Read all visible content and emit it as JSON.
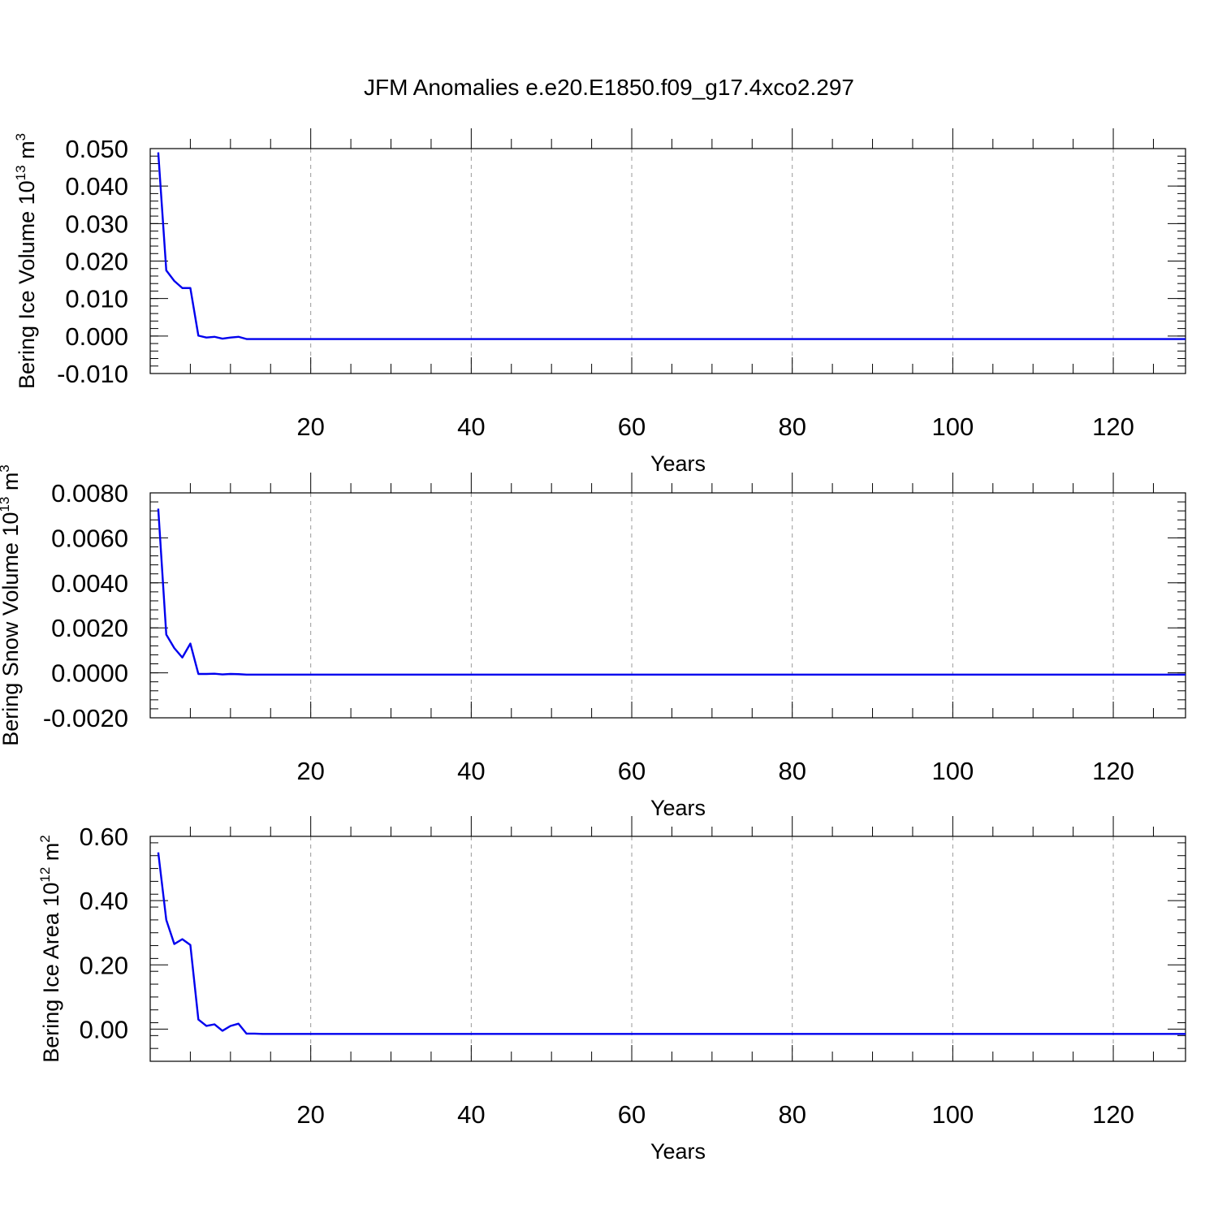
{
  "figure_title": "JFM Anomalies e.e20.E1850.f09_g17.4xco2.297",
  "line_color": "#0000ee",
  "chart_data": [
    {
      "type": "line",
      "xlabel": "Years",
      "ylabel": "Bering Ice Volume 10",
      "ylabel_exp": "13",
      "ylabel_unit": " m",
      "ylabel_unit_exp": "3",
      "xlim": [
        0,
        129
      ],
      "ylim": [
        -0.01,
        0.05
      ],
      "xticks": [
        20,
        40,
        60,
        80,
        100,
        120
      ],
      "xtick_labels": [
        "20",
        "40",
        "60",
        "80",
        "100",
        "120"
      ],
      "yticks": [
        -0.01,
        0.0,
        0.01,
        0.02,
        0.03,
        0.04,
        0.05
      ],
      "ytick_labels": [
        "-0.010",
        "0.000",
        "0.010",
        "0.020",
        "0.030",
        "0.040",
        "0.050"
      ],
      "grid": "vertical dashed",
      "series": [
        {
          "x": [
            1,
            2,
            3,
            4,
            5,
            6,
            7,
            8,
            9,
            10,
            11,
            12,
            13,
            20,
            40,
            60,
            80,
            100,
            120,
            129
          ],
          "values": [
            0.049,
            0.0175,
            0.0147,
            0.0128,
            0.0128,
            0.0001,
            -0.0004,
            -0.0002,
            -0.0007,
            -0.0004,
            -0.0002,
            -0.0008,
            -0.0008,
            -0.0008,
            -0.0008,
            -0.0008,
            -0.0008,
            -0.0008,
            -0.0008,
            -0.0008
          ]
        }
      ]
    },
    {
      "type": "line",
      "xlabel": "Years",
      "ylabel": "Bering Snow Volume 10",
      "ylabel_exp": "13",
      "ylabel_unit": " m",
      "ylabel_unit_exp": "3",
      "xlim": [
        0,
        129
      ],
      "ylim": [
        -0.002,
        0.008
      ],
      "xticks": [
        20,
        40,
        60,
        80,
        100,
        120
      ],
      "xtick_labels": [
        "20",
        "40",
        "60",
        "80",
        "100",
        "120"
      ],
      "yticks": [
        -0.002,
        0.0,
        0.002,
        0.004,
        0.006,
        0.008
      ],
      "ytick_labels": [
        "-0.0020",
        "0.0000",
        "0.0020",
        "0.0040",
        "0.0060",
        "0.0080"
      ],
      "grid": "vertical dashed",
      "series": [
        {
          "x": [
            1,
            2,
            3,
            4,
            5,
            6,
            7,
            8,
            9,
            10,
            11,
            12,
            13,
            20,
            40,
            60,
            80,
            100,
            120,
            129
          ],
          "values": [
            0.0073,
            0.0017,
            0.0011,
            0.00068,
            0.0013,
            -5e-05,
            -5e-05,
            -4e-05,
            -7e-05,
            -5e-05,
            -6e-05,
            -8e-05,
            -8e-05,
            -8e-05,
            -8e-05,
            -8e-05,
            -8e-05,
            -8e-05,
            -8e-05,
            -8e-05
          ]
        }
      ]
    },
    {
      "type": "line",
      "xlabel": "Years",
      "ylabel": "Bering Ice Area 10",
      "ylabel_exp": "12",
      "ylabel_unit": " m",
      "ylabel_unit_exp": "2",
      "xlim": [
        0,
        129
      ],
      "ylim": [
        -0.1,
        0.6
      ],
      "xticks": [
        20,
        40,
        60,
        80,
        100,
        120
      ],
      "xtick_labels": [
        "20",
        "40",
        "60",
        "80",
        "100",
        "120"
      ],
      "yticks": [
        0.0,
        0.2,
        0.4,
        0.6
      ],
      "ytick_labels": [
        "0.00",
        "0.20",
        "0.40",
        "0.60"
      ],
      "grid": "vertical dashed",
      "series": [
        {
          "x": [
            1,
            2,
            3,
            4,
            5,
            6,
            7,
            8,
            9,
            10,
            11,
            12,
            13,
            14,
            20,
            40,
            60,
            80,
            100,
            120,
            129
          ],
          "values": [
            0.55,
            0.34,
            0.265,
            0.28,
            0.262,
            0.03,
            0.01,
            0.015,
            -0.005,
            0.01,
            0.017,
            -0.014,
            -0.014,
            -0.015,
            -0.015,
            -0.015,
            -0.015,
            -0.015,
            -0.015,
            -0.015,
            -0.015
          ]
        }
      ]
    }
  ]
}
